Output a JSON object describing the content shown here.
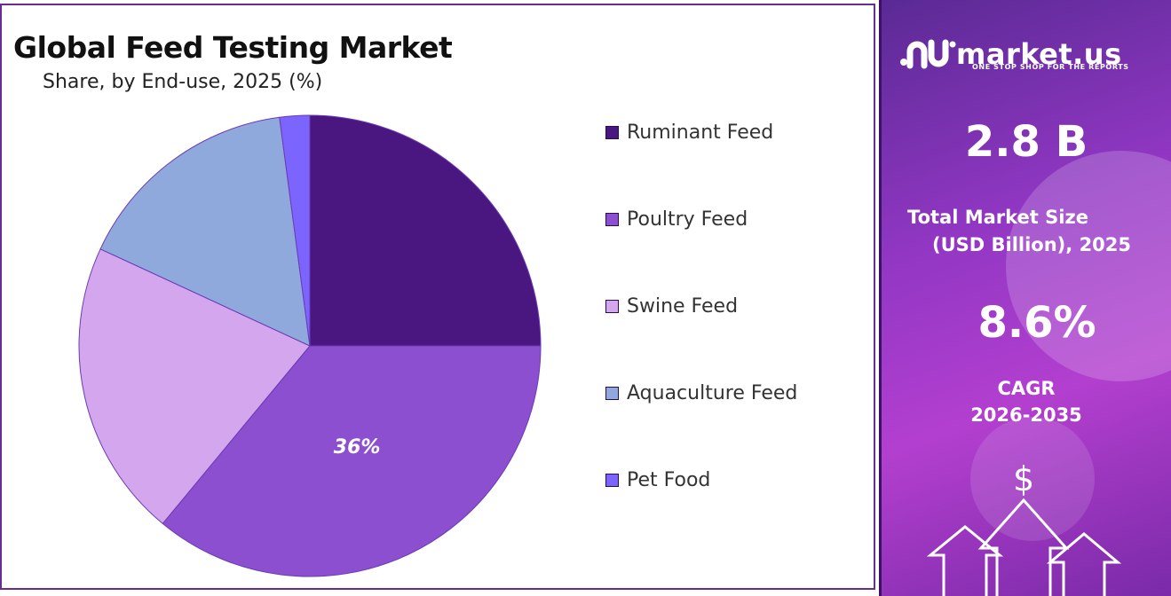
{
  "header": {
    "title": "Global Feed Testing Market",
    "subtitle": "Share, by End-use, 2025 (%)"
  },
  "chart_data": {
    "type": "pie",
    "categories": [
      "Ruminant Feed",
      "Poultry Feed",
      "Swine Feed",
      "Aquaculture Feed",
      "Pet Food"
    ],
    "values": [
      25,
      36,
      20.9,
      16,
      2.1
    ],
    "colors": [
      "#4a1680",
      "#8b4fd0",
      "#d3a6ee",
      "#8fa9dd",
      "#7c64ff"
    ],
    "data_labels": [
      "",
      "36%",
      "",
      "",
      ""
    ],
    "start_angle_deg": 0,
    "direction": "clockwise",
    "legend_position": "right"
  },
  "sidebar": {
    "brand": "market.us",
    "tagline": "ONE STOP SHOP FOR THE REPORTS",
    "market_size_value": "2.8 B",
    "market_size_label_1": "Total Market Size",
    "market_size_label_2": "(USD Billion), 2025",
    "cagr_value": "8.6%",
    "cagr_label_1": "CAGR",
    "cagr_label_2": "2026-2035",
    "dollar_symbol": "$",
    "icons": [
      "market-us-logo-icon",
      "dollar-icon",
      "up-arrow-icon"
    ]
  }
}
